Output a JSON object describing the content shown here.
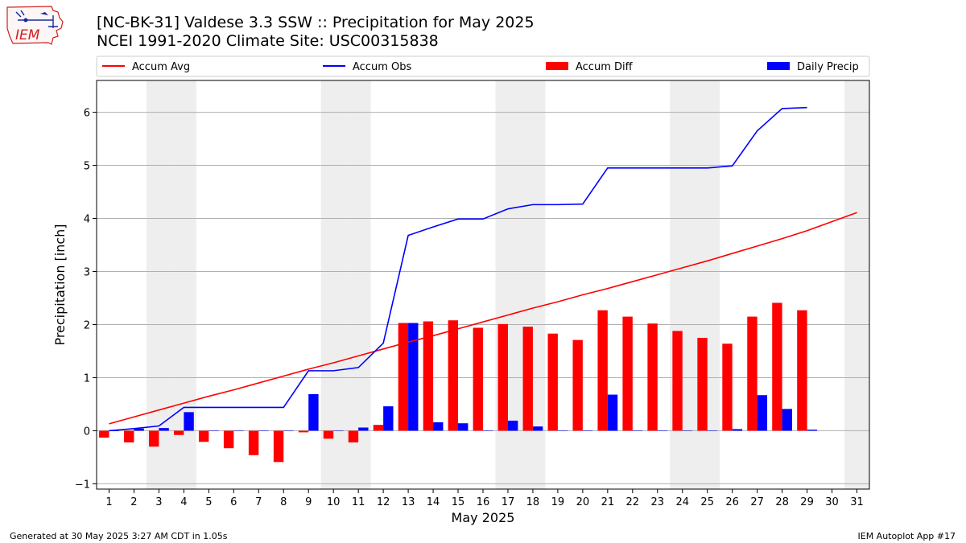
{
  "logo": {
    "text": "IEM",
    "name": "iem-logo-icon"
  },
  "header": {
    "title": "[NC-BK-31] Valdese 3.3 SSW :: Precipitation for May 2025",
    "subtitle": "NCEI 1991-2020 Climate Site: USC00315838"
  },
  "footer": {
    "left": "Generated at 30 May 2025 3:27 AM CDT in 1.05s",
    "right": "IEM Autoplot App #17"
  },
  "colors": {
    "avg": "#ff0000",
    "obs": "#0000ff",
    "diff": "#ff0000",
    "daily": "#0000ff",
    "weekend": "#eeeeee"
  },
  "chart_data": {
    "type": "bar",
    "xlabel": "May 2025",
    "ylabel": "Precipitation [inch]",
    "xlim": [
      0.5,
      31.5
    ],
    "ylim": [
      -1.1,
      6.6
    ],
    "yticks": [
      -1,
      0,
      1,
      2,
      3,
      4,
      5,
      6
    ],
    "grid": "y",
    "legend_placement": "top",
    "shaded_days": [
      3,
      4,
      10,
      11,
      17,
      18,
      24,
      25,
      31
    ],
    "days": [
      1,
      2,
      3,
      4,
      5,
      6,
      7,
      8,
      9,
      10,
      11,
      12,
      13,
      14,
      15,
      16,
      17,
      18,
      19,
      20,
      21,
      22,
      23,
      24,
      25,
      26,
      27,
      28,
      29,
      30,
      31
    ],
    "legend": [
      "Accum Avg",
      "Accum Obs",
      "Accum Diff",
      "Daily Precip"
    ],
    "series": [
      {
        "name": "Accum Avg",
        "type": "line",
        "values": [
          0.13,
          0.26,
          0.39,
          0.52,
          0.65,
          0.77,
          0.9,
          1.03,
          1.16,
          1.28,
          1.41,
          1.54,
          1.67,
          1.79,
          1.92,
          2.05,
          2.18,
          2.31,
          2.43,
          2.56,
          2.68,
          2.81,
          2.94,
          3.07,
          3.2,
          3.34,
          3.48,
          3.62,
          3.77,
          3.94,
          4.11
        ]
      },
      {
        "name": "Accum Obs",
        "type": "line",
        "values": [
          0.0,
          0.04,
          0.09,
          0.44,
          0.44,
          0.44,
          0.44,
          0.44,
          1.13,
          1.13,
          1.19,
          1.65,
          3.68,
          3.84,
          3.99,
          3.99,
          4.18,
          4.26,
          4.26,
          4.27,
          4.95,
          4.95,
          4.95,
          4.95,
          4.95,
          4.99,
          5.65,
          6.07,
          6.09
        ]
      },
      {
        "name": "Accum Diff",
        "type": "bar",
        "values": [
          -0.13,
          -0.22,
          -0.3,
          -0.08,
          -0.21,
          -0.33,
          -0.46,
          -0.59,
          -0.03,
          -0.15,
          -0.22,
          0.11,
          2.03,
          2.06,
          2.08,
          1.94,
          2.01,
          1.96,
          1.83,
          1.71,
          2.27,
          2.15,
          2.02,
          1.88,
          1.75,
          1.64,
          2.15,
          2.41,
          2.27
        ]
      },
      {
        "name": "Daily Precip",
        "type": "bar",
        "values": [
          0.0,
          0.04,
          0.05,
          0.35,
          0.0,
          0.0,
          0.0,
          0.0,
          0.69,
          0.0,
          0.06,
          0.46,
          2.03,
          0.16,
          0.14,
          0.0,
          0.19,
          0.08,
          0.0,
          0.0,
          0.68,
          0.0,
          0.0,
          0.0,
          0.0,
          0.03,
          0.67,
          0.41,
          0.02
        ]
      }
    ]
  }
}
